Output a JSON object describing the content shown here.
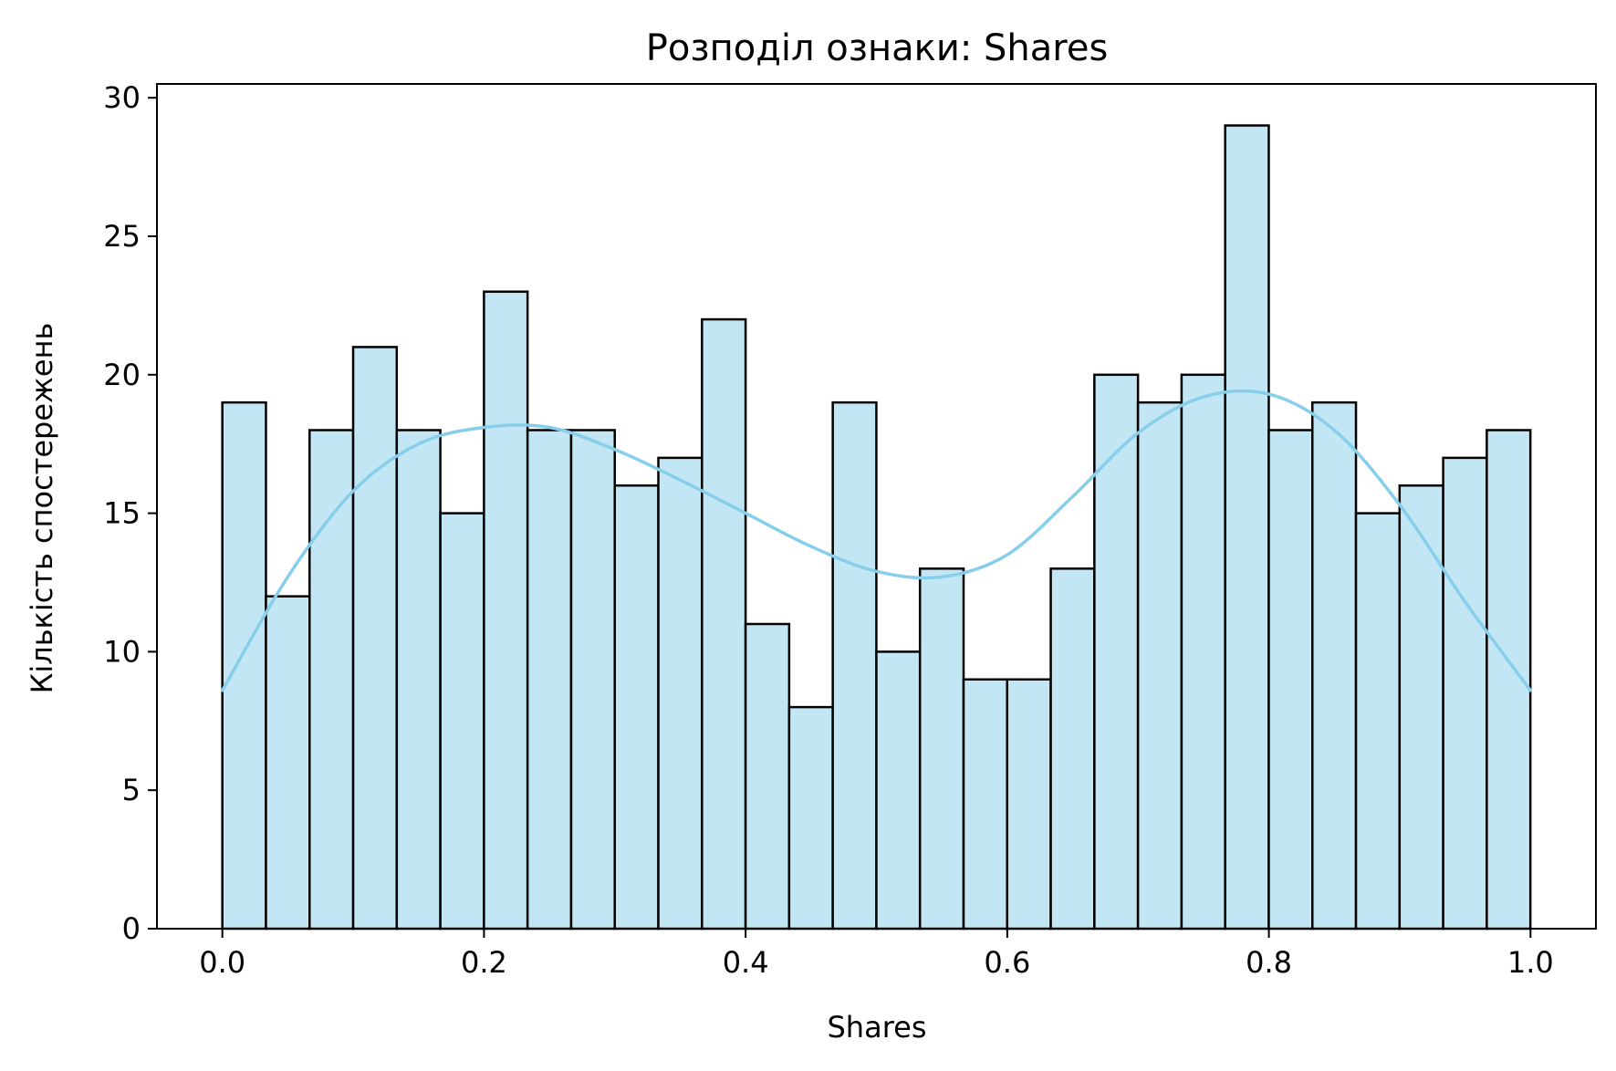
{
  "chart_data": {
    "type": "bar",
    "title": "Розподіл ознаки: Shares",
    "xlabel": "Shares",
    "ylabel": "Кількість спостережень",
    "xlim": [
      -0.05,
      1.05
    ],
    "ylim": [
      0,
      30.5
    ],
    "x_ticks": [
      "0.0",
      "0.2",
      "0.4",
      "0.6",
      "0.8",
      "1.0"
    ],
    "x_tick_values": [
      0.0,
      0.2,
      0.4,
      0.6,
      0.8,
      1.0
    ],
    "y_ticks": [
      "0",
      "5",
      "10",
      "15",
      "20",
      "25",
      "30"
    ],
    "y_tick_values": [
      0,
      5,
      10,
      15,
      20,
      25,
      30
    ],
    "grid": false,
    "bin_start": 0.0,
    "bin_width": 0.03333,
    "values": [
      19,
      12,
      18,
      21,
      18,
      15,
      23,
      18,
      18,
      16,
      17,
      22,
      11,
      8,
      19,
      10,
      13,
      9,
      9,
      13,
      20,
      19,
      20,
      29,
      18,
      19,
      15,
      16,
      17,
      18
    ],
    "bar_color": "#c3e6f5",
    "bar_edge_color": "#000000",
    "kde": {
      "color": "#87ceeb",
      "x": [
        0.0,
        0.05,
        0.1,
        0.15,
        0.2,
        0.25,
        0.3,
        0.35,
        0.4,
        0.45,
        0.5,
        0.55,
        0.6,
        0.65,
        0.7,
        0.75,
        0.8,
        0.85,
        0.9,
        0.95,
        1.0
      ],
      "y": [
        8.6,
        12.7,
        15.8,
        17.5,
        18.1,
        18.1,
        17.3,
        16.2,
        15.0,
        13.8,
        12.9,
        12.7,
        13.5,
        15.6,
        17.9,
        19.2,
        19.3,
        18.0,
        15.3,
        11.8,
        8.6
      ]
    }
  }
}
